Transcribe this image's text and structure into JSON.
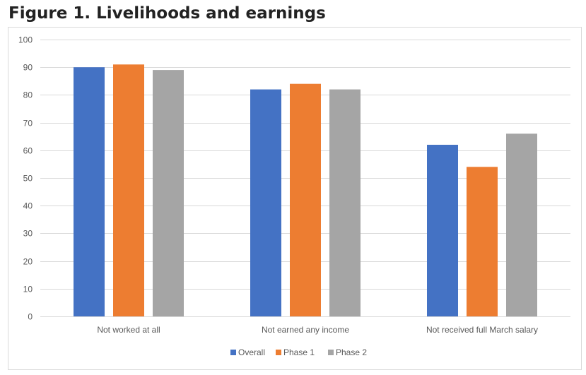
{
  "figure_title": "Figure 1. Livelihoods and earnings",
  "colors": {
    "Overall": "#4472c4",
    "Phase 1": "#ed7d31",
    "Phase 2": "#a5a5a5",
    "grid": "#d9d9d9",
    "axis_text": "#595959"
  },
  "chart_data": {
    "type": "bar",
    "title": "Figure 1. Livelihoods and earnings",
    "xlabel": "",
    "ylabel": "",
    "ylim": [
      0,
      100
    ],
    "yticks": [
      0,
      10,
      20,
      30,
      40,
      50,
      60,
      70,
      80,
      90,
      100
    ],
    "grid": true,
    "legend": "bottom",
    "categories": [
      "Not worked at all",
      "Not earned any income",
      "Not received full March salary"
    ],
    "series": [
      {
        "name": "Overall",
        "color": "#4472c4",
        "values": [
          90,
          82,
          62
        ]
      },
      {
        "name": "Phase 1",
        "color": "#ed7d31",
        "values": [
          91,
          84,
          54
        ]
      },
      {
        "name": "Phase 2",
        "color": "#a5a5a5",
        "values": [
          89,
          82,
          66
        ]
      }
    ]
  }
}
